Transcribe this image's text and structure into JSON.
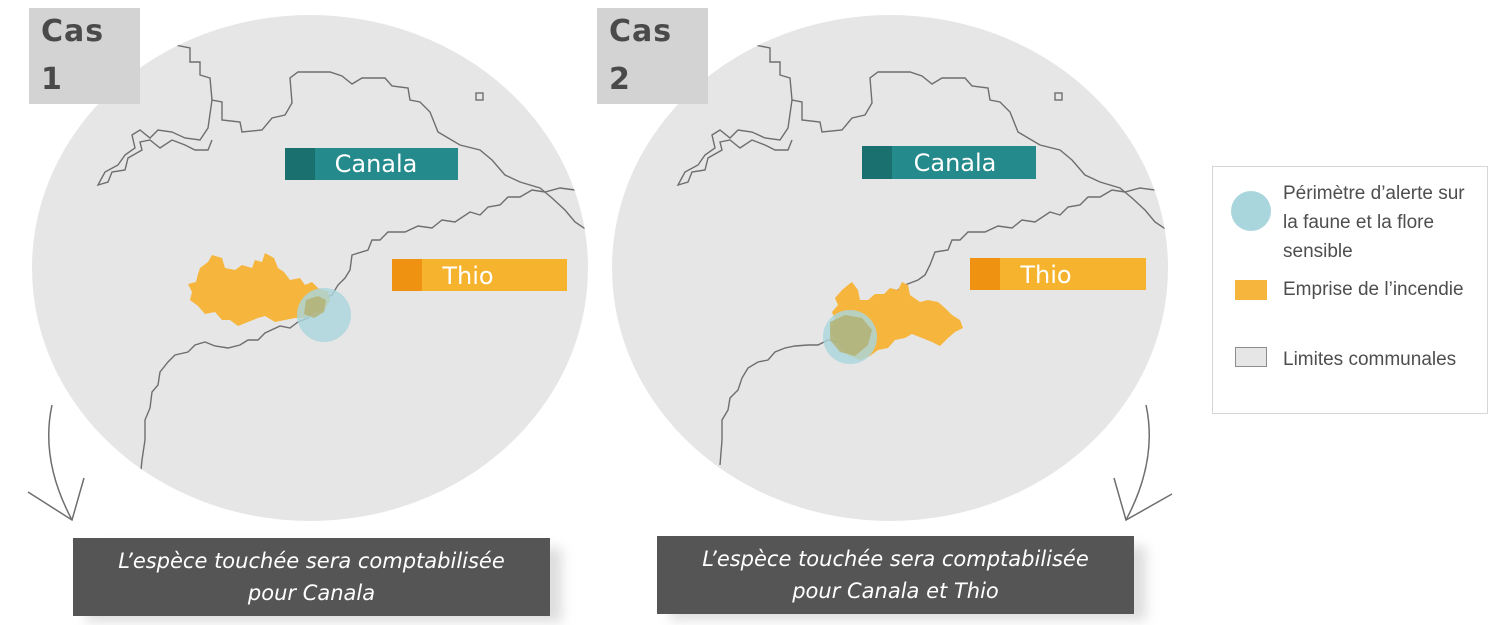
{
  "cases": [
    {
      "tab": "Cas 1",
      "label_canala": "Canala",
      "label_thio": "Thio",
      "caption_line1": "L’espèce touchée sera comptabilisée",
      "caption_line2": "pour Canala"
    },
    {
      "tab": "Cas 2",
      "label_canala": "Canala",
      "label_thio": "Thio",
      "caption_line1": "L’espèce touchée sera comptabilisée",
      "caption_line2": "pour Canala et Thio"
    }
  ],
  "legend": {
    "items": [
      {
        "label": "Périmètre d’alerte sur la faune et la flore sensible",
        "symbol": "circle",
        "color": "#a9d6dc"
      },
      {
        "label": "Emprise de l’incendie",
        "symbol": "square",
        "color": "#f6b53d"
      },
      {
        "label": "Limites communales",
        "symbol": "square-outline",
        "color": "#e6e6e6"
      }
    ]
  },
  "colors": {
    "map_bg": "#e6e6e6",
    "boundary": "#6e6e6e",
    "canala": "#248a8c",
    "canala_dark": "#1a6f6f",
    "thio": "#f6b42e",
    "thio_dark": "#ef9212",
    "fire": "#f6b53d",
    "alert": "#a9d6dc"
  }
}
